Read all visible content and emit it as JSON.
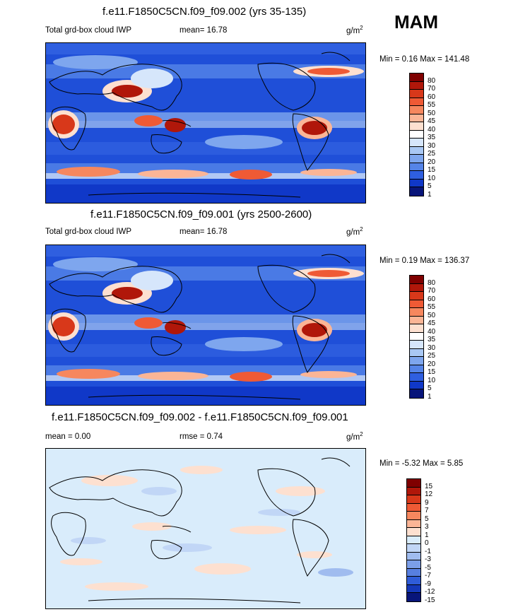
{
  "season": "MAM",
  "panels": [
    {
      "title": "f.e11.F1850C5CN.f09_f09.002 (yrs 35-135)",
      "left_label": "Total grd-box cloud IWP",
      "center_label": "mean=  16.78",
      "units_base": "g/m",
      "units_exp": "2",
      "minmax": "Min =   0.16 Max = 141.48",
      "colorbar_labels": [
        "80",
        "70",
        "60",
        "55",
        "50",
        "45",
        "40",
        "35",
        "30",
        "25",
        "20",
        "15",
        "10",
        "5",
        "1"
      ]
    },
    {
      "title": "f.e11.F1850C5CN.f09_f09.001 (yrs 2500-2600)",
      "left_label": "Total grd-box cloud IWP",
      "center_label": "mean=  16.78",
      "units_base": "g/m",
      "units_exp": "2",
      "minmax": "Min =   0.19 Max = 136.37",
      "colorbar_labels": [
        "80",
        "70",
        "60",
        "55",
        "50",
        "45",
        "40",
        "35",
        "30",
        "25",
        "20",
        "15",
        "10",
        "5",
        "1"
      ]
    },
    {
      "title": "f.e11.F1850C5CN.f09_f09.002 - f.e11.F1850C5CN.f09_f09.001",
      "left_label": "mean =   0.00",
      "center_label": "rmse =   0.74",
      "units_base": "g/m",
      "units_exp": "2",
      "minmax": "Min =  -5.32 Max =   5.85",
      "colorbar_labels": [
        "15",
        "12",
        "9",
        "7",
        "5",
        "3",
        "1",
        "0",
        "-1",
        "-3",
        "-5",
        "-7",
        "-9",
        "-12",
        "-15"
      ]
    }
  ],
  "colors": {
    "iwp_scale": [
      "#7f0000",
      "#b0170a",
      "#d8381a",
      "#ef5a35",
      "#f6875e",
      "#fbb596",
      "#fde0d0",
      "#ffffff",
      "#d6e6fb",
      "#a9c8f4",
      "#7ea6ee",
      "#5584e8",
      "#2f5fe0",
      "#1038c8",
      "#08157a"
    ],
    "diff_scale": [
      "#7f0000",
      "#b0170a",
      "#d8381a",
      "#ef5a35",
      "#f6875e",
      "#fbb596",
      "#fde0d0",
      "#d9ecfb",
      "#c1d6f6",
      "#a0bcef",
      "#7c9ee8",
      "#577fe0",
      "#2f5cd8",
      "#1538b8",
      "#08157a"
    ],
    "map_background_iwp": "#1f4fd8",
    "map_background_diff": "#d9ecfb"
  },
  "chart_data": [
    {
      "type": "heatmap",
      "title": "f.e11.F1850C5CN.f09_f09.002 (yrs 35-135)",
      "variable": "Total grd-box cloud IWP",
      "units": "g/m2",
      "mean": 16.78,
      "min": 0.16,
      "max": 141.48,
      "contour_levels": [
        1,
        5,
        10,
        15,
        20,
        25,
        30,
        35,
        40,
        45,
        50,
        55,
        60,
        70,
        80
      ]
    },
    {
      "type": "heatmap",
      "title": "f.e11.F1850C5CN.f09_f09.001 (yrs 2500-2600)",
      "variable": "Total grd-box cloud IWP",
      "units": "g/m2",
      "mean": 16.78,
      "min": 0.19,
      "max": 136.37,
      "contour_levels": [
        1,
        5,
        10,
        15,
        20,
        25,
        30,
        35,
        40,
        45,
        50,
        55,
        60,
        70,
        80
      ]
    },
    {
      "type": "heatmap",
      "title": "f.e11.F1850C5CN.f09_f09.002 - f.e11.F1850C5CN.f09_f09.001",
      "units": "g/m2",
      "mean": 0.0,
      "rmse": 0.74,
      "min": -5.32,
      "max": 5.85,
      "contour_levels": [
        -15,
        -12,
        -9,
        -7,
        -5,
        -3,
        -1,
        0,
        1,
        3,
        5,
        7,
        9,
        12,
        15
      ]
    }
  ]
}
